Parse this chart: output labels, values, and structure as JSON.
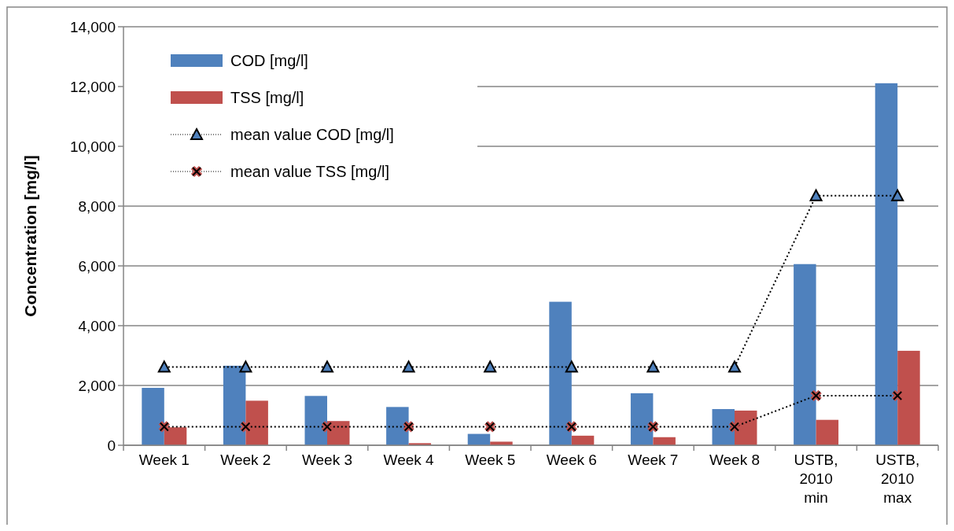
{
  "chart_data": {
    "type": "bar",
    "ylabel": "Concentration [mg/l]",
    "categories": [
      "Week 1",
      "Week 2",
      "Week 3",
      "Week 4",
      "Week 5",
      "Week 6",
      "Week 7",
      "Week 8",
      "USTB, 2010 min",
      "USTB, 2010 max"
    ],
    "series": [
      {
        "name": "COD [mg/l]",
        "color": "#4f81bd",
        "values": [
          1920,
          2660,
          1650,
          1280,
          380,
          4800,
          1740,
          1210,
          6060,
          12110
        ]
      },
      {
        "name": "TSS [mg/l]",
        "color": "#c0504d",
        "values": [
          600,
          1490,
          810,
          70,
          120,
          320,
          270,
          1160,
          850,
          3160
        ]
      },
      {
        "name": "mean value COD [mg/l]",
        "type": "line",
        "color": "#4f81bd",
        "marker": "triangle",
        "line_style": "dotted",
        "values": [
          2620,
          2620,
          2620,
          2620,
          2620,
          2620,
          2620,
          2620,
          8350,
          8350
        ]
      },
      {
        "name": "mean value TSS [mg/l]",
        "type": "line",
        "color": "#c0504d",
        "marker": "cross",
        "line_style": "dotted",
        "values": [
          620,
          620,
          620,
          620,
          620,
          620,
          620,
          620,
          1660,
          1660
        ]
      }
    ],
    "ylim": [
      0,
      14000
    ],
    "yticks": [
      {
        "value": 0,
        "label": "0"
      },
      {
        "value": 2000,
        "label": "2,000"
      },
      {
        "value": 4000,
        "label": "4,000"
      },
      {
        "value": 6000,
        "label": "6,000"
      },
      {
        "value": 8000,
        "label": "8,000"
      },
      {
        "value": 10000,
        "label": "10,000"
      },
      {
        "value": 12000,
        "label": "12,000"
      },
      {
        "value": 14000,
        "label": "14,000"
      }
    ],
    "grid": "y",
    "legend": "top left"
  }
}
